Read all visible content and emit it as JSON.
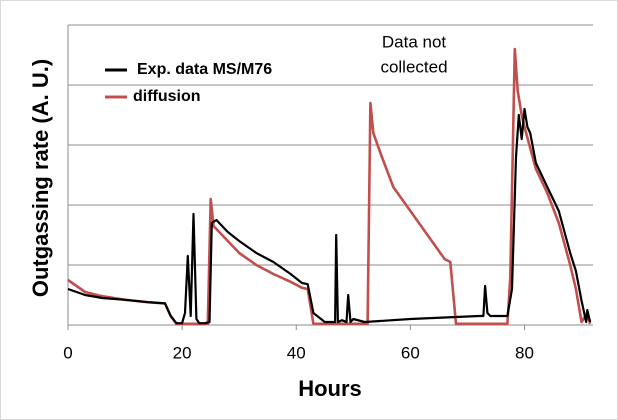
{
  "chart_data": {
    "type": "line",
    "xlabel": "Hours",
    "ylabel": "Outgassing rate (A. U.)",
    "annotation": [
      "Data not",
      "collected"
    ],
    "xlim": [
      0,
      92
    ],
    "xticks": [
      0,
      20,
      40,
      60,
      80
    ],
    "ylim": [
      0,
      5
    ],
    "yticks": [
      0,
      1,
      2,
      3,
      4,
      5
    ],
    "grid": true,
    "legend": "upper left",
    "series": [
      {
        "name": "Exp. data MS/M76",
        "color": "#000000",
        "x": [
          0,
          3,
          6,
          10,
          14,
          17,
          18,
          19,
          20,
          20.5,
          21,
          21.5,
          22,
          22.5,
          23,
          24,
          24.8,
          25.2,
          26,
          28,
          30,
          33,
          36,
          39,
          41,
          42,
          43,
          45,
          46.8,
          47,
          47.3,
          48,
          48.8,
          49.1,
          49.5,
          50,
          52,
          60,
          72,
          72.8,
          73.1,
          73.5,
          74,
          76,
          77,
          77.8,
          78.5,
          79,
          79.5,
          80,
          80.5,
          81,
          82,
          84,
          86,
          88,
          89,
          90,
          90.8,
          91,
          91.5
        ],
        "values": [
          0.6,
          0.5,
          0.45,
          0.42,
          0.38,
          0.36,
          0.15,
          0.03,
          0.03,
          0.2,
          1.15,
          0.15,
          1.85,
          0.1,
          0.03,
          0.03,
          0.05,
          1.7,
          1.75,
          1.55,
          1.4,
          1.2,
          1.05,
          0.85,
          0.7,
          0.68,
          0.2,
          0.05,
          0.05,
          1.5,
          0.05,
          0.08,
          0.05,
          0.5,
          0.05,
          0.1,
          0.05,
          0.1,
          0.15,
          0.15,
          0.65,
          0.2,
          0.15,
          0.15,
          0.15,
          0.6,
          2.8,
          3.5,
          3.1,
          3.6,
          3.3,
          3.2,
          2.7,
          2.3,
          1.9,
          1.2,
          0.9,
          0.4,
          0.05,
          0.25,
          0.05
        ]
      },
      {
        "name": "diffusion",
        "color": "#c0504d",
        "x": [
          0,
          3,
          6,
          10,
          14,
          17,
          18,
          19,
          24.5,
          25,
          25.5,
          26,
          28,
          30,
          33,
          36,
          39,
          41,
          42,
          43,
          52.5,
          53,
          53.5,
          55,
          57,
          60,
          63,
          66,
          67,
          68,
          77,
          77.5,
          78.3,
          78.8,
          79.5,
          80,
          82,
          84,
          86,
          88,
          89,
          90,
          91,
          91.5
        ],
        "values": [
          0.75,
          0.55,
          0.48,
          0.42,
          0.38,
          0.36,
          0.15,
          0.02,
          0.02,
          2.1,
          1.65,
          1.6,
          1.4,
          1.2,
          1.0,
          0.85,
          0.72,
          0.62,
          0.6,
          0.02,
          0.02,
          3.7,
          3.2,
          2.8,
          2.3,
          1.9,
          1.5,
          1.1,
          1.05,
          0.02,
          0.02,
          0.8,
          4.6,
          3.9,
          3.5,
          3.3,
          2.6,
          2.2,
          1.7,
          1.0,
          0.6,
          0.05,
          0.2,
          0.02
        ]
      }
    ]
  }
}
